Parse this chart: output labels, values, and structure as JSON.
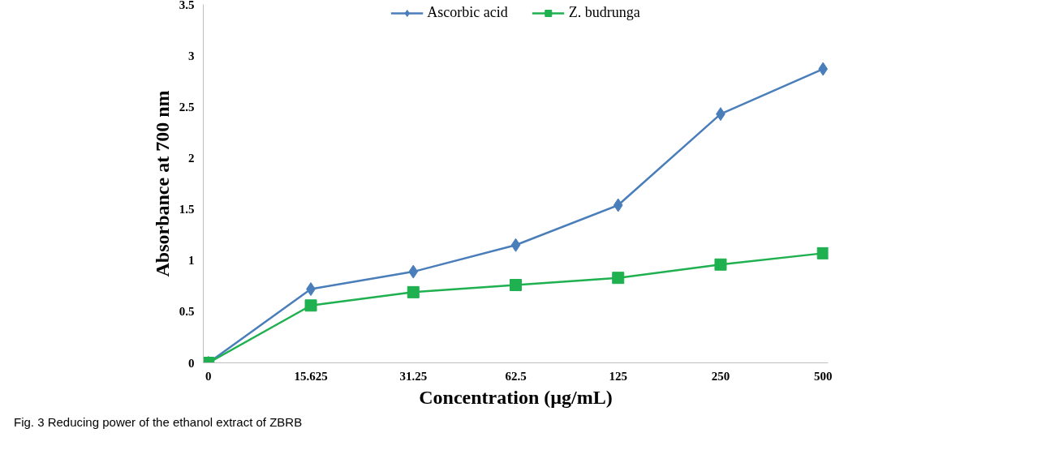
{
  "chart_data": {
    "type": "line",
    "xlabel": "Concentration (µg/mL)",
    "ylabel": "Absorbance at 700 nm",
    "categories": [
      "0",
      "15.625",
      "31.25",
      "62.5",
      "125",
      "250",
      "500"
    ],
    "series": [
      {
        "name": "Ascorbic acid",
        "color": "#4a7ebb",
        "marker": "diamond",
        "values": [
          0,
          0.72,
          0.89,
          1.15,
          1.54,
          2.43,
          2.87
        ]
      },
      {
        "name": "Z. budrunga",
        "color": "#1fb04f",
        "marker": "square",
        "values": [
          0,
          0.56,
          0.69,
          0.76,
          0.83,
          0.96,
          1.07
        ]
      }
    ],
    "ylim": [
      0,
      3.5
    ],
    "yticks": [
      0,
      0.5,
      1,
      1.5,
      2,
      2.5,
      3,
      3.5
    ],
    "grid": false,
    "legend": "top",
    "annotations": [
      "Fig. 3 Reducing power of the ethanol extract of ZBRB"
    ]
  }
}
